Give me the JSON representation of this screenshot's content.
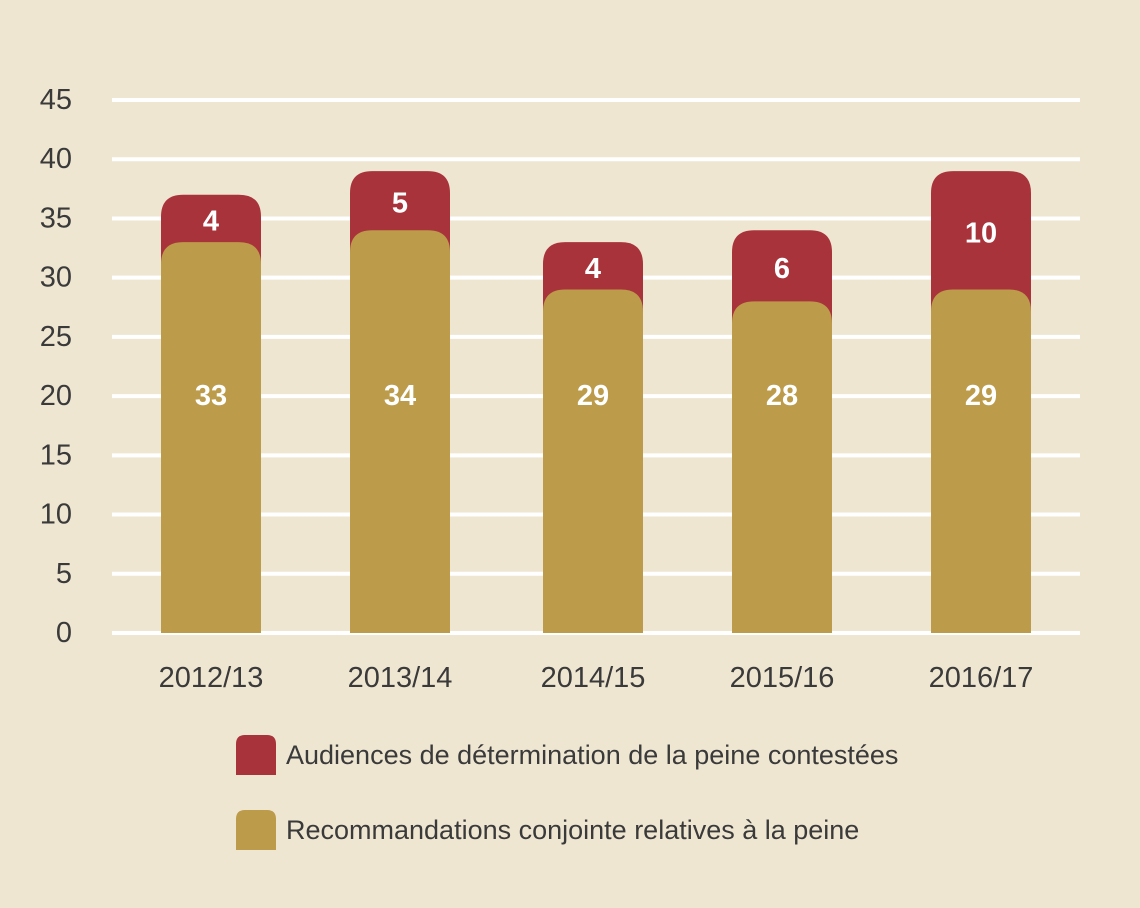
{
  "chart_data": {
    "type": "bar",
    "stacked": true,
    "categories": [
      "2012/13",
      "2013/14",
      "2014/15",
      "2015/16",
      "2016/17"
    ],
    "series": [
      {
        "name": "Recommandations conjointe relatives à la peine",
        "values": [
          33,
          34,
          29,
          28,
          29
        ],
        "color": "#bc9b4a"
      },
      {
        "name": "Audiences de détermination de la peine contestées",
        "values": [
          4,
          5,
          4,
          6,
          10
        ],
        "color": "#a8333b"
      }
    ],
    "yticks": [
      "0",
      "5",
      "10",
      "15",
      "20",
      "25",
      "30",
      "35",
      "40",
      "45"
    ],
    "ylim": [
      0,
      45
    ],
    "grid": true,
    "legend_position": "bottom",
    "legend_order": [
      1,
      0
    ],
    "background": "#efe6d2",
    "gridline_color": "#ffffff"
  }
}
